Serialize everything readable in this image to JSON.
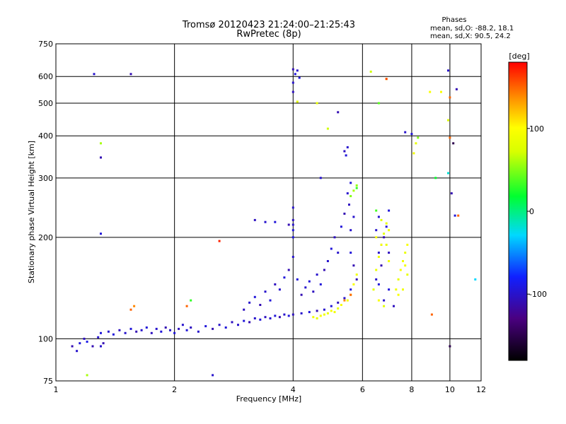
{
  "chart_data": {
    "type": "scatter",
    "title": "Tromsø 20120423 21:24:00–21:25:43",
    "subtitle": "RwPretec (8p)",
    "xlabel": "Frequency [MHz]",
    "ylabel": "Stationary phase Virtual Height [km]",
    "x_scale": "log",
    "y_scale": "log",
    "xlim": [
      1,
      12
    ],
    "ylim": [
      75,
      750
    ],
    "x_ticks": [
      "1",
      "2",
      "4",
      "6",
      "8",
      "10",
      "12"
    ],
    "y_ticks": [
      "75",
      "100",
      "200",
      "300",
      "400",
      "500",
      "600",
      "750"
    ],
    "x_tick_values": [
      1,
      2,
      4,
      6,
      8,
      10,
      12
    ],
    "y_tick_values": [
      75,
      100,
      200,
      300,
      400,
      500,
      600,
      750
    ],
    "grid": true,
    "stats": {
      "heading": "Phases",
      "line1": "mean, sd,O:  -88.2, 18.1",
      "line2": "mean, sd,X:  90.5, 24.2"
    },
    "colorbar": {
      "label": "[deg]",
      "ticks": [
        "100",
        "0",
        "-100"
      ],
      "tick_values": [
        100,
        0,
        -100
      ],
      "range": [
        -180,
        180
      ],
      "colormap": "rainbow"
    },
    "series": [
      {
        "points": [
          [
            1.1,
            95,
            -110
          ],
          [
            1.13,
            92,
            -100
          ],
          [
            1.15,
            97,
            -95
          ],
          [
            1.18,
            100,
            -105
          ],
          [
            1.2,
            98,
            -90
          ],
          [
            1.24,
            95,
            -110
          ],
          [
            1.28,
            101,
            -100
          ],
          [
            1.3,
            104,
            -95
          ],
          [
            1.32,
            97,
            -110
          ],
          [
            1.36,
            105,
            -100
          ],
          [
            1.4,
            103,
            -95
          ],
          [
            1.45,
            106,
            -105
          ],
          [
            1.5,
            104,
            -100
          ],
          [
            1.55,
            107,
            -95
          ],
          [
            1.6,
            105,
            -110
          ],
          [
            1.65,
            106,
            -100
          ],
          [
            1.7,
            108,
            -95
          ],
          [
            1.75,
            104,
            -105
          ],
          [
            1.8,
            107,
            -100
          ],
          [
            1.85,
            105,
            -95
          ],
          [
            1.9,
            108,
            -110
          ],
          [
            1.95,
            106,
            -100
          ],
          [
            2.0,
            104,
            -95
          ],
          [
            2.05,
            107,
            -105
          ],
          [
            2.1,
            110,
            -100
          ],
          [
            2.15,
            106,
            -95
          ],
          [
            2.2,
            108,
            -105
          ],
          [
            2.3,
            105,
            -100
          ],
          [
            2.4,
            109,
            -95
          ],
          [
            2.5,
            107,
            -110
          ],
          [
            2.6,
            110,
            -100
          ],
          [
            2.7,
            108,
            -95
          ],
          [
            2.8,
            112,
            -105
          ],
          [
            2.9,
            110,
            -100
          ],
          [
            3.0,
            113,
            -95
          ],
          [
            3.1,
            112,
            -110
          ],
          [
            3.2,
            115,
            -100
          ],
          [
            3.3,
            114,
            -95
          ],
          [
            3.4,
            116,
            -105
          ],
          [
            3.5,
            115,
            -100
          ],
          [
            3.6,
            117,
            -95
          ],
          [
            3.7,
            116,
            -110
          ],
          [
            3.8,
            118,
            -100
          ],
          [
            3.9,
            117,
            -95
          ],
          [
            4.0,
            118,
            -105
          ],
          [
            4.2,
            119,
            -100
          ],
          [
            4.4,
            120,
            -95
          ],
          [
            4.6,
            121,
            -110
          ],
          [
            4.8,
            122,
            -100
          ],
          [
            5.0,
            125,
            -95
          ],
          [
            5.2,
            128,
            -105
          ],
          [
            5.4,
            132,
            -100
          ],
          [
            5.6,
            140,
            -95
          ],
          [
            5.8,
            150,
            -110
          ],
          [
            3.0,
            122,
            -105
          ],
          [
            3.1,
            128,
            -100
          ],
          [
            3.2,
            133,
            -95
          ],
          [
            3.3,
            126,
            -110
          ],
          [
            3.4,
            138,
            -100
          ],
          [
            3.5,
            130,
            -95
          ],
          [
            3.6,
            145,
            -105
          ],
          [
            3.7,
            140,
            -100
          ],
          [
            3.8,
            152,
            -95
          ],
          [
            3.9,
            160,
            -110
          ],
          [
            4.0,
            175,
            -100
          ],
          [
            4.0,
            200,
            -95
          ],
          [
            4.0,
            225,
            -105
          ],
          [
            4.0,
            245,
            -100
          ],
          [
            4.1,
            150,
            -95
          ],
          [
            4.2,
            135,
            -110
          ],
          [
            4.3,
            142,
            -100
          ],
          [
            4.4,
            148,
            -95
          ],
          [
            4.5,
            138,
            -105
          ],
          [
            4.6,
            155,
            -100
          ],
          [
            4.7,
            145,
            -95
          ],
          [
            4.8,
            160,
            -110
          ],
          [
            4.9,
            170,
            -100
          ],
          [
            5.0,
            185,
            -95
          ],
          [
            5.1,
            200,
            -105
          ],
          [
            5.2,
            180,
            -100
          ],
          [
            5.3,
            215,
            -95
          ],
          [
            5.4,
            235,
            -110
          ],
          [
            5.5,
            270,
            -100
          ],
          [
            5.6,
            290,
            -95
          ],
          [
            5.55,
            250,
            -105
          ],
          [
            5.6,
            210,
            -100
          ],
          [
            5.6,
            180,
            -95
          ],
          [
            5.7,
            165,
            -110
          ],
          [
            5.7,
            230,
            -100
          ],
          [
            3.2,
            225,
            -105
          ],
          [
            3.4,
            222,
            -100
          ],
          [
            3.6,
            222,
            -95
          ],
          [
            3.9,
            218,
            -110
          ],
          [
            4.0,
            218,
            -100
          ],
          [
            4.0,
            210,
            -95
          ],
          [
            4.0,
            540,
            -105
          ],
          [
            4.0,
            575,
            -100
          ],
          [
            4.05,
            610,
            -95
          ],
          [
            4.0,
            630,
            -110
          ],
          [
            4.1,
            625,
            -100
          ],
          [
            4.15,
            595,
            -95
          ],
          [
            5.4,
            360,
            -105
          ],
          [
            5.5,
            370,
            -100
          ],
          [
            5.45,
            350,
            -95
          ],
          [
            5.2,
            470,
            -110
          ],
          [
            4.7,
            300,
            -100
          ],
          [
            1.25,
            610,
            -100
          ],
          [
            1.55,
            610,
            -110
          ],
          [
            1.3,
            95,
            -100
          ],
          [
            1.3,
            205,
            -95
          ],
          [
            1.3,
            345,
            -110
          ],
          [
            2.5,
            78,
            -100
          ],
          [
            7.7,
            410,
            -100
          ],
          [
            8.0,
            405,
            -95
          ],
          [
            10.4,
            550,
            -110
          ],
          [
            9.9,
            625,
            -100
          ],
          [
            10.3,
            232,
            -95
          ],
          [
            10.1,
            270,
            -110
          ],
          [
            6.5,
            150,
            -100
          ],
          [
            6.6,
            145,
            -95
          ],
          [
            6.7,
            165,
            -110
          ],
          [
            6.8,
            130,
            -100
          ],
          [
            7.0,
            140,
            -95
          ],
          [
            7.2,
            125,
            -105
          ],
          [
            6.6,
            180,
            -100
          ],
          [
            6.7,
            190,
            -95
          ],
          [
            6.8,
            200,
            -110
          ],
          [
            6.5,
            210,
            -100
          ],
          [
            6.9,
            215,
            -95
          ],
          [
            7.0,
            180,
            -105
          ],
          [
            6.6,
            230,
            -100
          ],
          [
            7.0,
            240,
            -95
          ],
          [
            4.5,
            116,
            90
          ],
          [
            4.6,
            115,
            85
          ],
          [
            4.7,
            117,
            95
          ],
          [
            4.8,
            118,
            90
          ],
          [
            4.9,
            119,
            85
          ],
          [
            5.0,
            121,
            95
          ],
          [
            5.1,
            120,
            90
          ],
          [
            5.2,
            123,
            85
          ],
          [
            5.3,
            126,
            95
          ],
          [
            5.5,
            130,
            90
          ],
          [
            5.6,
            135,
            85
          ],
          [
            5.7,
            145,
            95
          ],
          [
            5.8,
            155,
            90
          ],
          [
            6.4,
            140,
            80
          ],
          [
            6.5,
            160,
            85
          ],
          [
            6.6,
            175,
            90
          ],
          [
            6.7,
            190,
            95
          ],
          [
            6.8,
            205,
            80
          ],
          [
            6.9,
            220,
            85
          ],
          [
            7.0,
            210,
            90
          ],
          [
            6.5,
            200,
            95
          ],
          [
            6.7,
            225,
            80
          ],
          [
            6.9,
            190,
            85
          ],
          [
            7.0,
            170,
            90
          ],
          [
            6.6,
            130,
            95
          ],
          [
            6.8,
            125,
            80
          ],
          [
            7.3,
            140,
            90
          ],
          [
            7.4,
            150,
            85
          ],
          [
            7.5,
            160,
            95
          ],
          [
            7.6,
            170,
            90
          ],
          [
            7.7,
            180,
            85
          ],
          [
            7.8,
            190,
            95
          ],
          [
            7.6,
            140,
            90
          ],
          [
            7.8,
            155,
            85
          ],
          [
            7.4,
            135,
            95
          ],
          [
            7.7,
            165,
            90
          ],
          [
            5.6,
            265,
            50
          ],
          [
            5.7,
            275,
            60
          ],
          [
            5.8,
            285,
            55
          ],
          [
            6.3,
            620,
            70
          ],
          [
            6.9,
            590,
            90
          ],
          [
            8.9,
            540,
            95
          ],
          [
            9.5,
            540,
            95
          ],
          [
            9.9,
            445,
            75
          ],
          [
            8.1,
            355,
            90
          ],
          [
            8.2,
            380,
            85
          ],
          [
            4.9,
            420,
            70
          ],
          [
            4.6,
            500,
            85
          ],
          [
            4.1,
            505,
            80
          ],
          [
            6.6,
            500,
            40
          ],
          [
            8.3,
            395,
            50
          ],
          [
            9.2,
            300,
            20
          ],
          [
            5.8,
            280,
            30
          ],
          [
            6.5,
            240,
            35
          ],
          [
            1.55,
            122,
            150
          ],
          [
            1.58,
            125,
            140
          ],
          [
            2.15,
            125,
            150
          ],
          [
            5.4,
            130,
            140
          ],
          [
            5.6,
            135,
            150
          ],
          [
            9.0,
            118,
            150
          ],
          [
            10.0,
            520,
            150
          ],
          [
            10.5,
            232,
            150
          ],
          [
            6.9,
            590,
            160
          ],
          [
            1.3,
            380,
            60
          ],
          [
            1.2,
            78,
            60
          ],
          [
            2.2,
            130,
            30
          ],
          [
            2.6,
            195,
            170
          ],
          [
            10.0,
            395,
            150
          ],
          [
            10.0,
            95,
            -150
          ],
          [
            10.2,
            380,
            -150
          ],
          [
            9.9,
            310,
            -20
          ],
          [
            11.6,
            150,
            -30
          ]
        ]
      }
    ]
  }
}
